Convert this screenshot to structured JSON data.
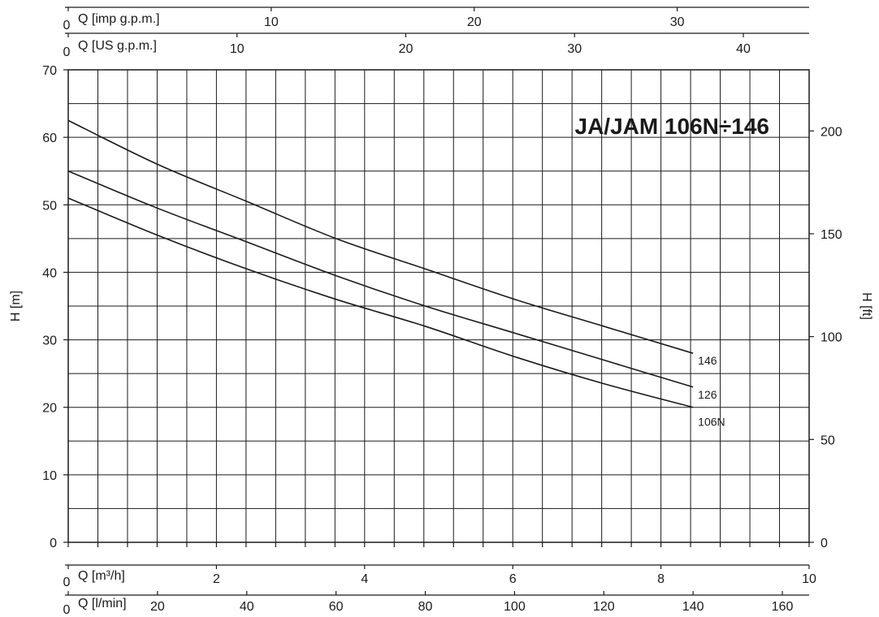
{
  "chart_data": {
    "type": "line",
    "title": "JA/JAM 106N÷146",
    "ylabel": "H [m]",
    "ylabel_right": "H [ft]",
    "grid": true,
    "x": {
      "label": "Q [l/min]",
      "range": [
        0,
        166
      ],
      "ticks": [
        "0",
        "20",
        "40",
        "60",
        "80",
        "100",
        "120",
        "140",
        "160"
      ]
    },
    "x_m3h": {
      "label": "Q [m³/h]",
      "range": [
        0,
        10
      ],
      "ticks": [
        "0",
        "2",
        "4",
        "6",
        "8",
        "10"
      ]
    },
    "x_us_gpm": {
      "label": "Q [US g.p.m.]",
      "range": [
        0,
        43.9
      ],
      "ticks": [
        "0",
        "10",
        "20",
        "30",
        "40"
      ]
    },
    "x_imp_gpm": {
      "label": "Q [imp g.p.m.]",
      "range": [
        0,
        36.5
      ],
      "ticks": [
        "0",
        "10",
        "20",
        "30"
      ]
    },
    "y": {
      "range": [
        0,
        70
      ],
      "ticks": [
        "0",
        "10",
        "20",
        "30",
        "40",
        "50",
        "60",
        "70"
      ]
    },
    "y_right": {
      "range": [
        0,
        229.7
      ],
      "ticks": [
        "0",
        "50",
        "100",
        "150",
        "200"
      ]
    },
    "series": [
      {
        "name": "146",
        "x": [
          0,
          20,
          40,
          60,
          80,
          100,
          120,
          140
        ],
        "y": [
          62.5,
          56,
          50.5,
          45,
          40.5,
          36,
          32,
          28
        ]
      },
      {
        "name": "126",
        "x": [
          0,
          20,
          40,
          60,
          80,
          100,
          120,
          140
        ],
        "y": [
          55,
          49.5,
          44.5,
          39.5,
          35,
          31,
          27,
          23
        ]
      },
      {
        "name": "106N",
        "x": [
          0,
          20,
          40,
          60,
          80,
          100,
          120,
          140
        ],
        "y": [
          51,
          45.5,
          40.5,
          36,
          32,
          27.5,
          23.5,
          20
        ]
      }
    ]
  }
}
